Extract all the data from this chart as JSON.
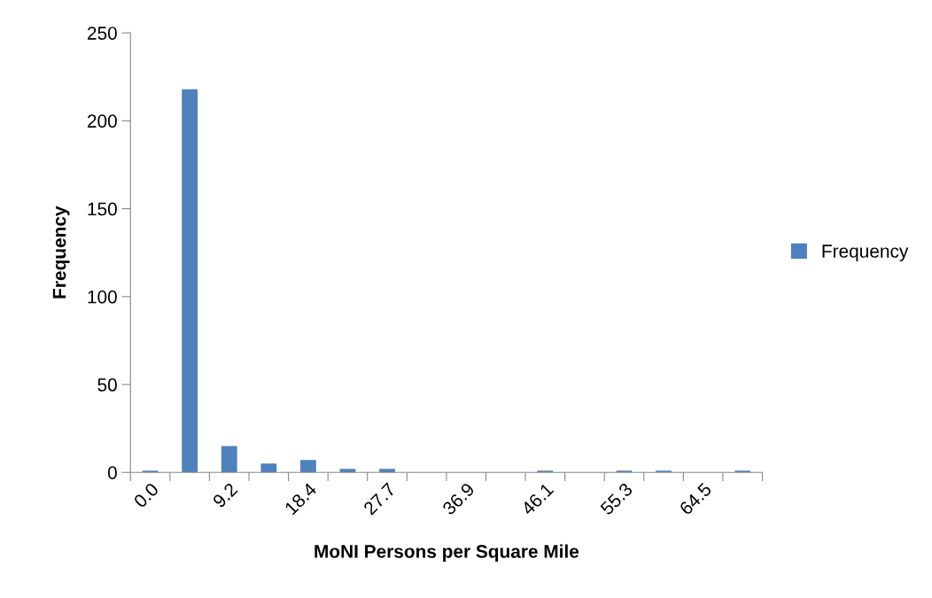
{
  "chart_data": {
    "type": "bar",
    "xlabel": "MoNI Persons per Square Mile",
    "ylabel": "Frequency",
    "categories": [
      "0.0",
      null,
      "9.2",
      null,
      "18.4",
      null,
      "27.7",
      null,
      "36.9",
      null,
      "46.1",
      null,
      "55.3",
      null,
      "64.5",
      null
    ],
    "series": [
      {
        "name": "Frequency",
        "color": "#4f81bd",
        "values": [
          1,
          218,
          15,
          5,
          7,
          2,
          2,
          0,
          0,
          0,
          1,
          0,
          1,
          1,
          0,
          1
        ]
      }
    ],
    "ylim": [
      0,
      250
    ],
    "yticks": [
      0,
      50,
      100,
      150,
      200,
      250
    ],
    "grid": false,
    "legend": "right"
  }
}
